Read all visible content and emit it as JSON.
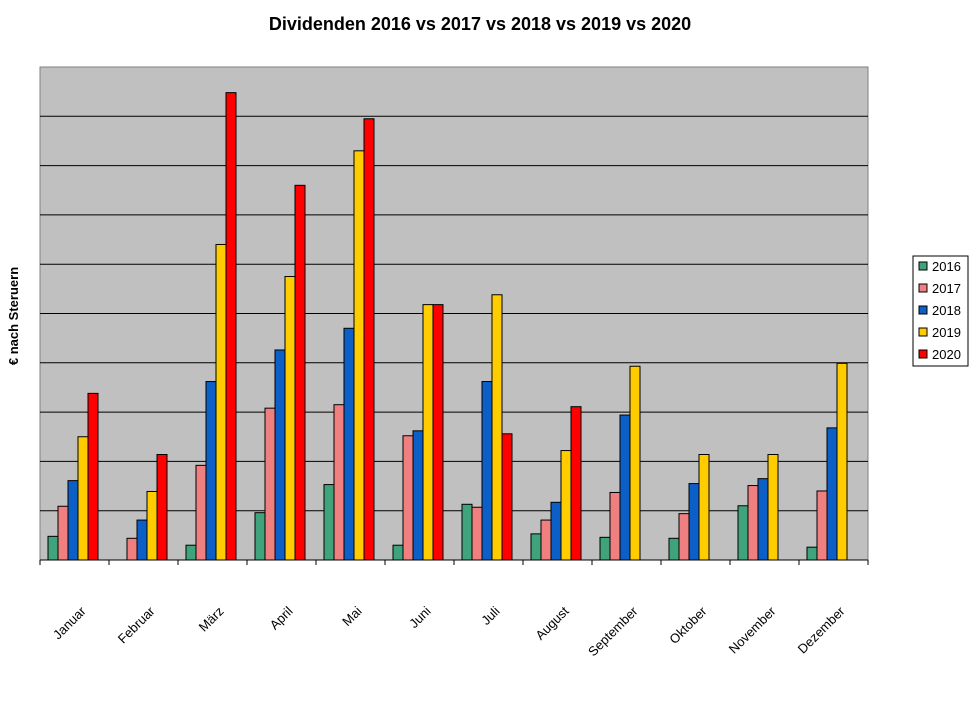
{
  "chart_data": {
    "type": "bar",
    "title": "Dividenden 2016 vs 2017 vs 2018 vs 2019 vs 2020",
    "xlabel": "",
    "ylabel": "€ nach Steruern",
    "ylim": [
      0,
      100
    ],
    "grid": true,
    "legend_position": "right",
    "categories": [
      "Januar",
      "Februar",
      "März",
      "April",
      "Mai",
      "Juni",
      "Juli",
      "August",
      "September",
      "Oktober",
      "November",
      "Dezember"
    ],
    "series": [
      {
        "name": "2016",
        "color": "#3fa47c",
        "values": [
          4.8,
          0,
          3.0,
          9.6,
          15.3,
          3.0,
          11.3,
          5.3,
          4.6,
          4.4,
          11.0,
          2.6
        ]
      },
      {
        "name": "2017",
        "color": "#f08080",
        "values": [
          10.9,
          4.4,
          19.2,
          30.8,
          31.5,
          25.2,
          10.7,
          8.1,
          13.7,
          9.4,
          15.1,
          14.0
        ]
      },
      {
        "name": "2018",
        "color": "#0b5fc6",
        "values": [
          16.1,
          8.1,
          36.2,
          42.6,
          47.0,
          26.2,
          36.2,
          11.7,
          29.4,
          15.5,
          16.5,
          26.8
        ]
      },
      {
        "name": "2019",
        "color": "#ffcc00",
        "values": [
          25.0,
          13.9,
          64.0,
          57.5,
          83.0,
          51.8,
          53.8,
          22.2,
          39.3,
          21.4,
          21.4,
          39.9
        ]
      },
      {
        "name": "2020",
        "color": "#ff0000",
        "values": [
          33.8,
          21.4,
          94.8,
          76.0,
          89.5,
          51.8,
          25.6,
          31.1,
          0,
          0,
          0,
          0
        ]
      }
    ]
  }
}
